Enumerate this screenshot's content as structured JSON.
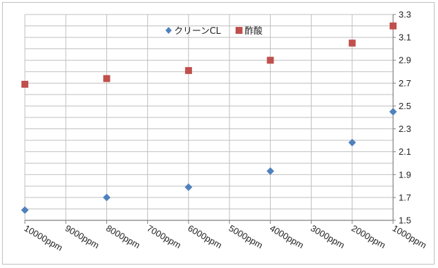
{
  "chart_data": {
    "type": "scatter",
    "x_categories": [
      "10000ppm",
      "9000ppm",
      "8000ppm",
      "7000ppm",
      "6000ppm",
      "5000ppm",
      "4000ppm",
      "3000ppm",
      "2000ppm",
      "1000ppm"
    ],
    "y_ticks": [
      "3.3",
      "3.1",
      "2.9",
      "2.7",
      "2.5",
      "2.3",
      "2.1",
      "1.9",
      "1.7",
      "1.5"
    ],
    "ylim": [
      1.5,
      3.3
    ],
    "y_axis_position": "right",
    "grid": true,
    "legend_position": "top-center",
    "series": [
      {
        "name": "クリーンCL",
        "marker": "diamond",
        "color": "#4f81bd",
        "points": [
          {
            "x": "10000ppm",
            "y": 1.59
          },
          {
            "x": "8000ppm",
            "y": 1.7
          },
          {
            "x": "6000ppm",
            "y": 1.79
          },
          {
            "x": "4000ppm",
            "y": 1.93
          },
          {
            "x": "2000ppm",
            "y": 2.18
          },
          {
            "x": "1000ppm",
            "y": 2.45
          }
        ]
      },
      {
        "name": "酢酸",
        "marker": "square",
        "color": "#c0504d",
        "points": [
          {
            "x": "10000ppm",
            "y": 2.69
          },
          {
            "x": "8000ppm",
            "y": 2.74
          },
          {
            "x": "6000ppm",
            "y": 2.81
          },
          {
            "x": "4000ppm",
            "y": 2.9
          },
          {
            "x": "2000ppm",
            "y": 3.05
          },
          {
            "x": "1000ppm",
            "y": 3.2
          }
        ]
      }
    ]
  }
}
